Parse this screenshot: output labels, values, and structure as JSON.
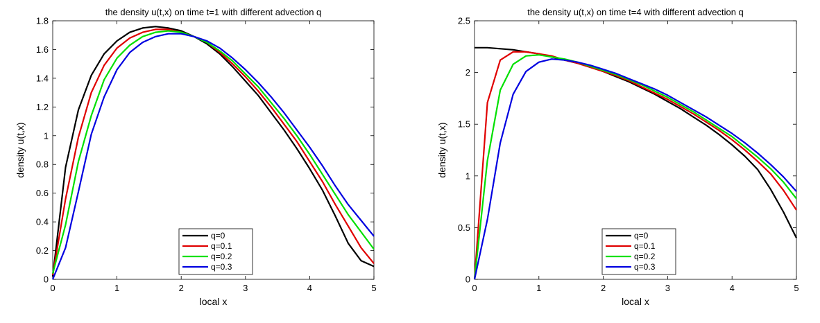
{
  "chart_data": [
    {
      "type": "line",
      "title": "the density u(t,x) on time t=1 with different advection q",
      "xlabel": "local x",
      "ylabel": "density u(t,x)",
      "xlim": [
        0,
        5
      ],
      "ylim": [
        0,
        1.8
      ],
      "xticks": [
        "0",
        "1",
        "2",
        "3",
        "4",
        "5"
      ],
      "yticks": [
        "0",
        "0.2",
        "0.4",
        "0.6",
        "0.8",
        "1",
        "1.2",
        "1.4",
        "1.6",
        "1.8"
      ],
      "grid": false,
      "legend_position": "bottom-center",
      "x": [
        0,
        0.2,
        0.4,
        0.6,
        0.8,
        1.0,
        1.2,
        1.4,
        1.6,
        1.8,
        2.0,
        2.2,
        2.4,
        2.6,
        2.8,
        3.0,
        3.2,
        3.4,
        3.6,
        3.8,
        4.0,
        4.2,
        4.4,
        4.6,
        4.8,
        5.0
      ],
      "series": [
        {
          "name": "q=0",
          "color": "#000000",
          "values": [
            0.02,
            0.78,
            1.18,
            1.42,
            1.57,
            1.66,
            1.72,
            1.75,
            1.76,
            1.75,
            1.73,
            1.69,
            1.64,
            1.57,
            1.48,
            1.38,
            1.28,
            1.16,
            1.04,
            0.91,
            0.77,
            0.62,
            0.44,
            0.25,
            0.13,
            0.09
          ]
        },
        {
          "name": "q=0.1",
          "color": "#e00000",
          "values": [
            0.03,
            0.56,
            0.99,
            1.3,
            1.49,
            1.61,
            1.68,
            1.72,
            1.74,
            1.74,
            1.72,
            1.69,
            1.65,
            1.58,
            1.5,
            1.41,
            1.31,
            1.2,
            1.08,
            0.96,
            0.82,
            0.68,
            0.52,
            0.37,
            0.22,
            0.11
          ]
        },
        {
          "name": "q=0.2",
          "color": "#00e000",
          "values": [
            0.04,
            0.38,
            0.82,
            1.14,
            1.39,
            1.54,
            1.63,
            1.69,
            1.72,
            1.73,
            1.72,
            1.69,
            1.65,
            1.59,
            1.52,
            1.43,
            1.34,
            1.23,
            1.12,
            1.0,
            0.87,
            0.73,
            0.59,
            0.45,
            0.33,
            0.21
          ]
        },
        {
          "name": "q=0.3",
          "color": "#0000e0",
          "values": [
            0.0,
            0.22,
            0.61,
            1.01,
            1.27,
            1.46,
            1.58,
            1.65,
            1.69,
            1.71,
            1.71,
            1.69,
            1.66,
            1.61,
            1.54,
            1.46,
            1.37,
            1.27,
            1.16,
            1.04,
            0.92,
            0.79,
            0.65,
            0.52,
            0.41,
            0.3
          ]
        }
      ]
    },
    {
      "type": "line",
      "title": "the density u(t,x) on time t=4 with different advection q",
      "xlabel": "local x",
      "ylabel": "density u(t,x)",
      "xlim": [
        0,
        5
      ],
      "ylim": [
        0,
        2.5
      ],
      "xticks": [
        "0",
        "1",
        "2",
        "3",
        "4",
        "5"
      ],
      "yticks": [
        "0",
        "0.5",
        "1",
        "1.5",
        "2",
        "2.5"
      ],
      "grid": false,
      "legend_position": "bottom-center",
      "x": [
        0,
        0.2,
        0.4,
        0.6,
        0.8,
        1.0,
        1.2,
        1.4,
        1.6,
        1.8,
        2.0,
        2.2,
        2.4,
        2.6,
        2.8,
        3.0,
        3.2,
        3.4,
        3.6,
        3.8,
        4.0,
        4.2,
        4.4,
        4.6,
        4.8,
        5.0
      ],
      "series": [
        {
          "name": "q=0",
          "color": "#000000",
          "values": [
            2.24,
            2.24,
            2.23,
            2.22,
            2.2,
            2.18,
            2.15,
            2.12,
            2.09,
            2.05,
            2.01,
            1.96,
            1.91,
            1.85,
            1.79,
            1.72,
            1.65,
            1.57,
            1.49,
            1.4,
            1.3,
            1.19,
            1.06,
            0.87,
            0.65,
            0.4
          ]
        },
        {
          "name": "q=0.1",
          "color": "#e00000",
          "values": [
            0.0,
            1.71,
            2.12,
            2.2,
            2.2,
            2.18,
            2.16,
            2.12,
            2.09,
            2.05,
            2.01,
            1.97,
            1.92,
            1.86,
            1.8,
            1.74,
            1.67,
            1.6,
            1.52,
            1.44,
            1.35,
            1.25,
            1.14,
            1.02,
            0.86,
            0.67
          ]
        },
        {
          "name": "q=0.2",
          "color": "#00e000",
          "values": [
            0.0,
            1.15,
            1.83,
            2.08,
            2.16,
            2.17,
            2.15,
            2.13,
            2.1,
            2.06,
            2.02,
            1.98,
            1.93,
            1.88,
            1.82,
            1.76,
            1.69,
            1.62,
            1.54,
            1.46,
            1.38,
            1.28,
            1.18,
            1.07,
            0.94,
            0.78
          ]
        },
        {
          "name": "q=0.3",
          "color": "#0000e0",
          "values": [
            0.0,
            0.58,
            1.32,
            1.79,
            2.01,
            2.1,
            2.13,
            2.12,
            2.1,
            2.07,
            2.03,
            1.99,
            1.94,
            1.89,
            1.84,
            1.78,
            1.71,
            1.64,
            1.57,
            1.49,
            1.41,
            1.32,
            1.22,
            1.11,
            0.99,
            0.85
          ]
        }
      ]
    }
  ]
}
